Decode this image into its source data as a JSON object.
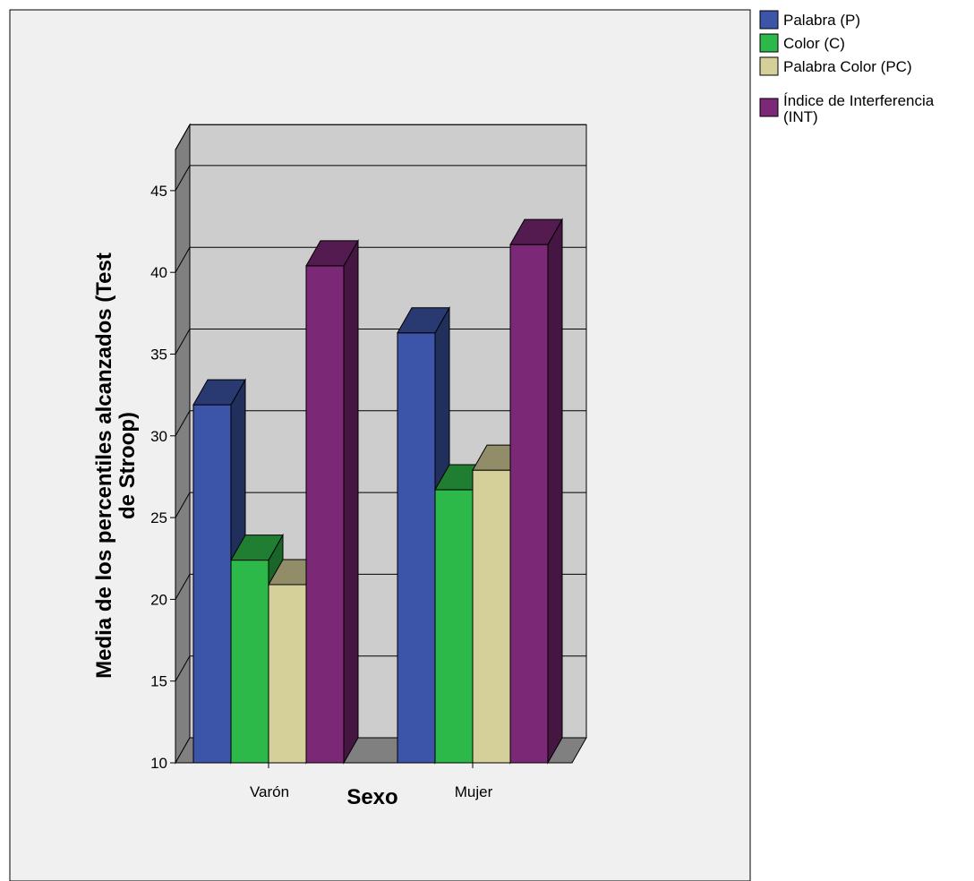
{
  "chart_data": {
    "type": "bar",
    "categories": [
      "Varón",
      "Mujer"
    ],
    "series": [
      {
        "name": "Palabra (P)",
        "values": [
          31.9,
          36.3
        ],
        "color": "#3c55a8"
      },
      {
        "name": "Color (C)",
        "values": [
          22.4,
          26.7
        ],
        "color": "#2db94a"
      },
      {
        "name": "Palabra Color (PC)",
        "values": [
          20.9,
          27.9
        ],
        "color": "#d5cf9a"
      },
      {
        "name": "Índice de Interferencia (INT)",
        "values": [
          40.4,
          41.7
        ],
        "color": "#7b2877"
      }
    ],
    "xlabel": "Sexo",
    "ylabel": "Media de los percentiles alcanzados (Test de Stroop)",
    "ylim": [
      10,
      47.5
    ],
    "yticks": [
      10,
      15,
      20,
      25,
      30,
      35,
      40,
      45
    ],
    "grid": true,
    "legend": "top-right",
    "three_d": true,
    "colors": {
      "plot_background": "#f0f0f0",
      "back_wall": "#cdcdcd",
      "side_wall": "#808080",
      "frame": "#000000"
    }
  }
}
